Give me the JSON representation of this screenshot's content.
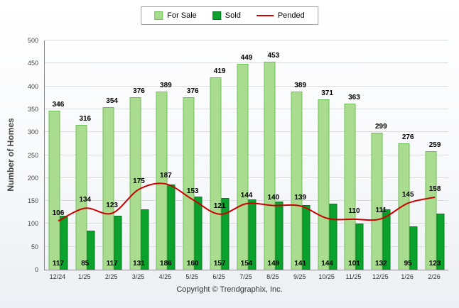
{
  "legend": {
    "items": [
      {
        "label": "For Sale",
        "type": "square",
        "color": "#a9dc8f",
        "border": "#6fbf58"
      },
      {
        "label": "Sold",
        "type": "square",
        "color": "#0aa22d",
        "border": "#067a1f"
      },
      {
        "label": "Pended",
        "type": "line",
        "color": "#cc0000"
      }
    ]
  },
  "y_axis": {
    "title": "Number of Homes",
    "ticks": [
      0,
      50,
      100,
      150,
      200,
      250,
      300,
      350,
      400,
      450,
      500
    ]
  },
  "footer": "Copyright © Trendgraphix, Inc.",
  "chart_data": {
    "type": "bar",
    "categories": [
      "12/24",
      "1/25",
      "2/25",
      "3/25",
      "4/25",
      "5/25",
      "6/25",
      "7/25",
      "8/25",
      "9/25",
      "10/25",
      "11/25",
      "12/25",
      "1/26",
      "2/26"
    ],
    "series": [
      {
        "name": "For Sale",
        "type": "bar",
        "color": "#a9dc8f",
        "border_color": "#6fbf58",
        "values": [
          346,
          316,
          354,
          376,
          389,
          376,
          419,
          449,
          453,
          389,
          371,
          363,
          299,
          276,
          259
        ]
      },
      {
        "name": "Sold",
        "type": "bar",
        "color": "#0aa22d",
        "border_color": "#067a1f",
        "values": [
          117,
          85,
          117,
          131,
          186,
          160,
          157,
          154,
          149,
          141,
          144,
          101,
          132,
          95,
          123
        ]
      },
      {
        "name": "Pended",
        "type": "line",
        "color": "#cc0000",
        "values": [
          106,
          134,
          123,
          175,
          187,
          153,
          121,
          144,
          140,
          139,
          112,
          110,
          111,
          145,
          158
        ],
        "value_labels": [
          "106",
          "134",
          "123",
          "175",
          "187",
          "153",
          "121",
          "144",
          "140",
          "139",
          "",
          "110",
          "111",
          "145",
          "158"
        ]
      }
    ],
    "title": "",
    "xlabel": "",
    "ylabel": "Number of Homes",
    "ylim": [
      0,
      500
    ],
    "grid": true,
    "legend_position": "top"
  }
}
